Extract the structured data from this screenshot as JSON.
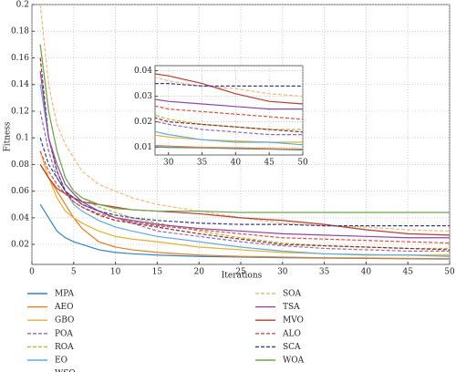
{
  "chart_data": {
    "type": "line",
    "x_label": "Iterations",
    "y_label": "Fitness",
    "x": [
      1,
      2,
      3,
      4,
      5,
      6,
      8,
      10,
      12,
      15,
      20,
      25,
      30,
      35,
      40,
      45,
      50
    ],
    "xlim": [
      0,
      50
    ],
    "xticks": [
      0,
      5,
      10,
      15,
      20,
      25,
      30,
      35,
      40,
      45,
      50
    ],
    "ylim": [
      0.005,
      0.2
    ],
    "yticks": [
      0.02,
      0.04,
      0.06,
      0.08,
      0.1,
      0.12,
      0.14,
      0.16,
      0.18,
      0.2
    ],
    "grid": true,
    "inset": {
      "xlim": [
        28,
        50
      ],
      "ylim": [
        0.007,
        0.042
      ],
      "xticks": [
        30,
        35,
        40,
        45,
        50
      ],
      "yticks": [
        0.01,
        0.02,
        0.03,
        0.04
      ]
    },
    "series": [
      {
        "name": "MPA",
        "color": "#2e86c1",
        "dash": false,
        "values": [
          0.05,
          0.04,
          0.03,
          0.025,
          0.022,
          0.02,
          0.016,
          0.014,
          0.013,
          0.012,
          0.011,
          0.0105,
          0.01,
          0.0098,
          0.0095,
          0.0093,
          0.009
        ]
      },
      {
        "name": "AEO",
        "color": "#e67e22",
        "dash": false,
        "values": [
          0.08,
          0.07,
          0.06,
          0.05,
          0.04,
          0.032,
          0.022,
          0.018,
          0.016,
          0.014,
          0.012,
          0.011,
          0.0105,
          0.01,
          0.0098,
          0.0095,
          0.0093
        ]
      },
      {
        "name": "GBO",
        "color": "#e8b030",
        "dash": false,
        "values": [
          0.09,
          0.07,
          0.055,
          0.045,
          0.04,
          0.036,
          0.03,
          0.026,
          0.024,
          0.022,
          0.018,
          0.016,
          0.014,
          0.013,
          0.0125,
          0.012,
          0.012
        ]
      },
      {
        "name": "POA",
        "color": "#8e6bbf",
        "dash": true,
        "values": [
          0.12,
          0.09,
          0.07,
          0.06,
          0.055,
          0.05,
          0.045,
          0.04,
          0.036,
          0.03,
          0.026,
          0.022,
          0.019,
          0.017,
          0.016,
          0.015,
          0.015
        ]
      },
      {
        "name": "ROA",
        "color": "#b5b83a",
        "dash": true,
        "values": [
          0.17,
          0.12,
          0.09,
          0.07,
          0.06,
          0.055,
          0.048,
          0.044,
          0.04,
          0.036,
          0.03,
          0.025,
          0.021,
          0.019,
          0.018,
          0.017,
          0.017
        ]
      },
      {
        "name": "EO",
        "color": "#5dade2",
        "dash": false,
        "values": [
          0.14,
          0.1,
          0.075,
          0.06,
          0.05,
          0.045,
          0.038,
          0.033,
          0.03,
          0.026,
          0.022,
          0.018,
          0.015,
          0.013,
          0.012,
          0.012,
          0.011
        ]
      },
      {
        "name": "WSO",
        "color": "#922b21",
        "dash": true,
        "values": [
          0.16,
          0.1,
          0.075,
          0.06,
          0.052,
          0.048,
          0.042,
          0.038,
          0.036,
          0.033,
          0.028,
          0.024,
          0.02,
          0.019,
          0.018,
          0.017,
          0.016
        ]
      },
      {
        "name": "SOA",
        "color": "#f5b87a",
        "dash": true,
        "values": [
          0.2,
          0.14,
          0.11,
          0.095,
          0.085,
          0.075,
          0.065,
          0.06,
          0.055,
          0.05,
          0.045,
          0.04,
          0.036,
          0.034,
          0.033,
          0.031,
          0.03
        ]
      },
      {
        "name": "TSA",
        "color": "#8e44ad",
        "dash": false,
        "values": [
          0.15,
          0.1,
          0.08,
          0.065,
          0.058,
          0.052,
          0.045,
          0.04,
          0.038,
          0.035,
          0.032,
          0.03,
          0.028,
          0.027,
          0.026,
          0.025,
          0.025
        ]
      },
      {
        "name": "MVO",
        "color": "#c0392b",
        "dash": false,
        "values": [
          0.08,
          0.07,
          0.062,
          0.058,
          0.055,
          0.052,
          0.05,
          0.048,
          0.046,
          0.045,
          0.043,
          0.04,
          0.038,
          0.035,
          0.031,
          0.028,
          0.027
        ]
      },
      {
        "name": "ALO",
        "color": "#e74c3c",
        "dash": true,
        "values": [
          0.09,
          0.075,
          0.065,
          0.058,
          0.052,
          0.048,
          0.043,
          0.04,
          0.037,
          0.034,
          0.031,
          0.028,
          0.025,
          0.024,
          0.023,
          0.022,
          0.021
        ]
      },
      {
        "name": "SCA",
        "color": "#2c3e9e",
        "dash": true,
        "values": [
          0.1,
          0.08,
          0.07,
          0.06,
          0.055,
          0.05,
          0.045,
          0.042,
          0.04,
          0.038,
          0.036,
          0.035,
          0.035,
          0.034,
          0.034,
          0.034,
          0.034
        ]
      },
      {
        "name": "WOA",
        "color": "#6aa84f",
        "dash": false,
        "values": [
          0.17,
          0.12,
          0.09,
          0.07,
          0.06,
          0.055,
          0.05,
          0.047,
          0.046,
          0.045,
          0.045,
          0.044,
          0.044,
          0.044,
          0.044,
          0.044,
          0.044
        ]
      }
    ]
  }
}
